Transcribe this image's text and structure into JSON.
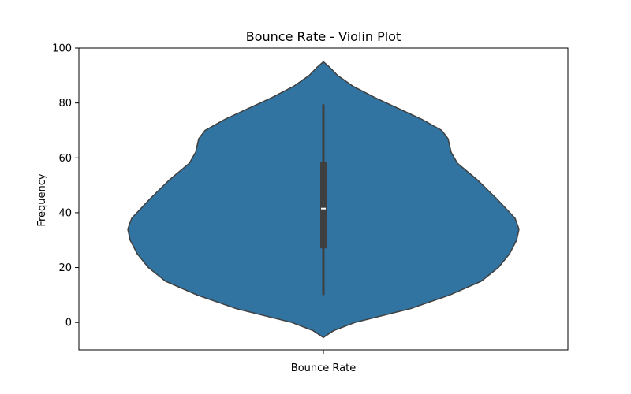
{
  "chart_data": {
    "type": "violin",
    "title": "Bounce Rate - Violin Plot",
    "xlabel": "",
    "ylabel": "Frequency",
    "categories": [
      "Bounce Rate"
    ],
    "ylim": [
      -10,
      100
    ],
    "yticks": [
      "0",
      "20",
      "40",
      "60",
      "80",
      "100"
    ],
    "grid": false,
    "color": "#3274a1",
    "density_profile": [
      {
        "y": -5.5,
        "half_width": 0
      },
      {
        "y": -3,
        "half_width": 13
      },
      {
        "y": 0,
        "half_width": 40
      },
      {
        "y": 5,
        "half_width": 110
      },
      {
        "y": 10,
        "half_width": 160
      },
      {
        "y": 15,
        "half_width": 200
      },
      {
        "y": 20,
        "half_width": 222
      },
      {
        "y": 25,
        "half_width": 236
      },
      {
        "y": 30,
        "half_width": 245
      },
      {
        "y": 34,
        "half_width": 248
      },
      {
        "y": 38,
        "half_width": 243
      },
      {
        "y": 45,
        "half_width": 220
      },
      {
        "y": 52,
        "half_width": 195
      },
      {
        "y": 58,
        "half_width": 170
      },
      {
        "y": 62,
        "half_width": 162
      },
      {
        "y": 67,
        "half_width": 158
      },
      {
        "y": 70,
        "half_width": 150
      },
      {
        "y": 74,
        "half_width": 125
      },
      {
        "y": 78,
        "half_width": 95
      },
      {
        "y": 82,
        "half_width": 65
      },
      {
        "y": 86,
        "half_width": 38
      },
      {
        "y": 90,
        "half_width": 18
      },
      {
        "y": 93,
        "half_width": 8
      },
      {
        "y": 95,
        "half_width": 0
      }
    ],
    "box": {
      "whisker_low": 10,
      "q1": 27,
      "median": 41.5,
      "q3": 58.5,
      "whisker_high": 79.5
    }
  }
}
